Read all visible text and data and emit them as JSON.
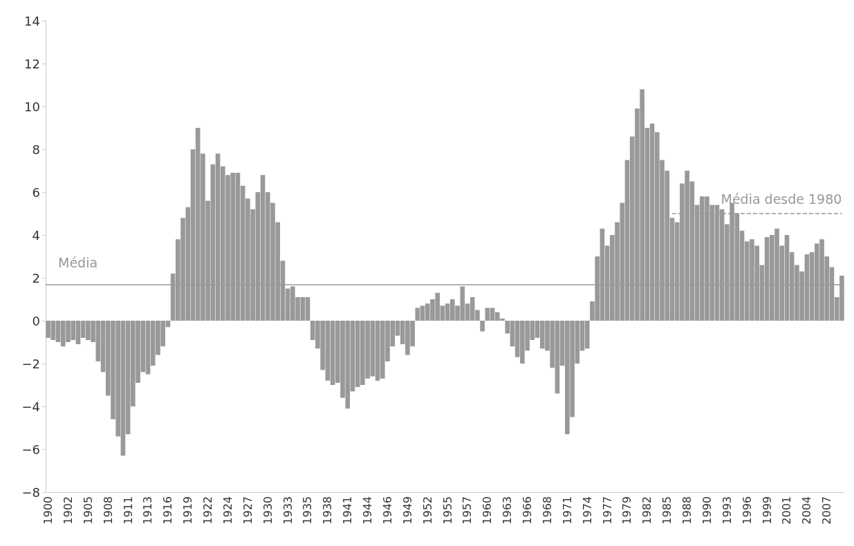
{
  "chart_data": {
    "type": "bar",
    "categories": [
      "1900",
      null,
      null,
      null,
      "1902",
      null,
      null,
      null,
      "1905",
      null,
      null,
      null,
      "1908",
      null,
      null,
      null,
      "1911",
      null,
      null,
      null,
      "1913",
      null,
      null,
      null,
      "1916",
      null,
      null,
      null,
      "1919",
      null,
      null,
      null,
      "1922",
      null,
      null,
      null,
      "1924",
      null,
      null,
      null,
      "1927",
      null,
      null,
      null,
      "1930",
      null,
      null,
      null,
      "1933",
      null,
      null,
      null,
      "1935",
      null,
      null,
      null,
      "1938",
      null,
      null,
      null,
      "1941",
      null,
      null,
      null,
      "1944",
      null,
      null,
      null,
      "1946",
      null,
      null,
      null,
      "1949",
      null,
      null,
      null,
      "1952",
      null,
      null,
      null,
      "1955",
      null,
      null,
      null,
      "1957",
      null,
      null,
      null,
      "1960",
      null,
      null,
      null,
      "1963",
      null,
      null,
      null,
      "1966",
      null,
      null,
      null,
      "1968",
      null,
      null,
      null,
      "1971",
      null,
      null,
      null,
      "1974",
      null,
      null,
      null,
      "1977",
      null,
      null,
      null,
      "1979",
      null,
      null,
      null,
      "1982",
      null,
      null,
      null,
      "1985",
      null,
      null,
      null,
      "1988",
      null,
      null,
      null,
      "1990",
      null,
      null,
      null,
      "1993",
      null,
      null,
      null,
      "1996",
      null,
      null,
      null,
      "1999",
      null,
      null,
      null,
      "2001",
      null,
      null,
      null,
      "2004",
      null,
      null,
      null,
      "2007",
      null,
      null,
      null
    ],
    "series": [
      {
        "color": "#999999",
        "values": [
          -0.8,
          -0.9,
          -1.0,
          -1.2,
          -1.0,
          -0.9,
          -1.1,
          -0.8,
          -0.9,
          -1.0,
          -1.9,
          -2.4,
          -3.5,
          -4.6,
          -5.4,
          -6.3,
          -5.3,
          -4.0,
          -2.9,
          -2.4,
          -2.5,
          -2.1,
          -1.6,
          -1.2,
          -0.3,
          2.2,
          3.8,
          4.8,
          5.3,
          8.0,
          9.0,
          7.8,
          5.6,
          7.3,
          7.8,
          7.2,
          6.8,
          6.9,
          6.9,
          6.3,
          5.7,
          5.2,
          6.0,
          6.8,
          6.0,
          5.5,
          4.6,
          2.8,
          1.5,
          1.6,
          1.1,
          1.1,
          1.1,
          -0.9,
          -1.3,
          -2.3,
          -2.8,
          -3.0,
          -2.9,
          -3.6,
          -4.1,
          -3.3,
          -3.1,
          -3.0,
          -2.7,
          -2.6,
          -2.8,
          -2.7,
          -1.9,
          -1.2,
          -0.7,
          -1.1,
          -1.6,
          -1.2,
          0.6,
          0.7,
          0.8,
          1.0,
          1.3,
          0.7,
          0.8,
          1.0,
          0.7,
          1.6,
          0.8,
          1.1,
          0.5,
          -0.5,
          0.6,
          0.6,
          0.4,
          0.1,
          -0.6,
          -1.2,
          -1.7,
          -2.0,
          -1.4,
          -0.9,
          -0.8,
          -1.3,
          -1.4,
          -2.2,
          -3.4,
          -2.1,
          -5.3,
          -4.5,
          -2.0,
          -1.4,
          -1.3,
          0.9,
          3.0,
          4.3,
          3.5,
          4.0,
          4.6,
          5.5,
          7.5,
          8.6,
          9.9,
          10.8,
          9.0,
          9.2,
          8.8,
          7.5,
          7.0,
          4.8,
          4.6,
          6.4,
          7.0,
          6.5,
          5.4,
          5.8,
          5.8,
          5.4,
          5.4,
          5.2,
          4.5,
          5.5,
          5.0,
          4.2,
          3.7,
          3.8,
          3.5,
          2.6,
          3.9,
          4.0,
          4.3,
          3.5,
          4.0,
          3.2,
          2.6,
          2.3,
          3.1,
          3.2,
          3.6,
          3.8,
          3.0,
          2.5,
          1.1,
          2.1
        ]
      },
      {
        "type": "line",
        "name": "Média desde 1980",
        "color": "#999999",
        "line_style": "dashed",
        "values": [
          null,
          null,
          null,
          null,
          null,
          null,
          null,
          null,
          null,
          null,
          null,
          null,
          null,
          null,
          null,
          null,
          null,
          null,
          null,
          null,
          null,
          null,
          null,
          null,
          null,
          null,
          null,
          null,
          null,
          null,
          null,
          null,
          null,
          null,
          null,
          null,
          null,
          null,
          null,
          null,
          null,
          null,
          null,
          null,
          null,
          null,
          null,
          null,
          null,
          null,
          null,
          null,
          null,
          null,
          null,
          null,
          null,
          null,
          null,
          null,
          null,
          null,
          null,
          null,
          null,
          null,
          null,
          null,
          null,
          null,
          null,
          null,
          null,
          null,
          null,
          null,
          null,
          null,
          null,
          null,
          null,
          null,
          null,
          null,
          null,
          null,
          null,
          null,
          null,
          null,
          null,
          null,
          null,
          null,
          null,
          null,
          null,
          null,
          null,
          null,
          null,
          null,
          null,
          null,
          null,
          null,
          null,
          null,
          null,
          null,
          null,
          null,
          null,
          null,
          null,
          null,
          null,
          null,
          null,
          null,
          null,
          null,
          null,
          null,
          null,
          5.0,
          5.0,
          5.0,
          5.0,
          5.0,
          5.0,
          5.0,
          5.0,
          5.0,
          5.0,
          5.0,
          5.0,
          5.0,
          5.0,
          5.0,
          5.0,
          5.0,
          5.0,
          5.0,
          5.0,
          5.0,
          5.0,
          5.0,
          5.0,
          5.0,
          5.0,
          5.0,
          5.0,
          5.0,
          5.0,
          5.0,
          5.0,
          5.0,
          5.0,
          5.0
        ]
      }
    ],
    "ref_lines": [
      {
        "axis": "y",
        "value": 1.7,
        "label": "Média",
        "color": "#999999",
        "line_style": "solid"
      }
    ],
    "ylim": [
      -8,
      14
    ],
    "yticks": [
      -8,
      -6,
      -4,
      -2,
      0,
      2,
      4,
      6,
      8,
      10,
      12,
      14
    ],
    "grid": false,
    "legend": false,
    "marker": "none"
  }
}
